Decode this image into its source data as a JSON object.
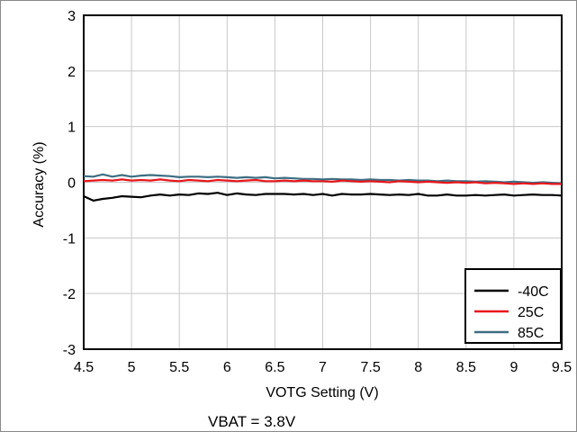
{
  "chart_data": {
    "type": "line",
    "title": "",
    "xlabel": "VOTG Setting (V)",
    "ylabel": "Accuracy (%)",
    "note": "VBAT = 3.8V",
    "xlim": [
      4.5,
      9.5
    ],
    "ylim": [
      -3,
      3
    ],
    "x_ticks": [
      "4.5",
      "5",
      "5.5",
      "6",
      "6.5",
      "7",
      "7.5",
      "8",
      "8.5",
      "9",
      "9.5"
    ],
    "y_ticks": [
      "3",
      "2",
      "1",
      "0",
      "-1",
      "-2",
      "-3"
    ],
    "grid": true,
    "legend_position": "bottom-right",
    "x": [
      4.5,
      4.6,
      4.7,
      4.8,
      4.9,
      5.0,
      5.1,
      5.2,
      5.3,
      5.4,
      5.5,
      5.6,
      5.7,
      5.8,
      5.9,
      6.0,
      6.1,
      6.2,
      6.3,
      6.4,
      6.5,
      6.6,
      6.7,
      6.8,
      6.9,
      7.0,
      7.1,
      7.2,
      7.3,
      7.4,
      7.5,
      7.6,
      7.7,
      7.8,
      7.9,
      8.0,
      8.1,
      8.2,
      8.3,
      8.4,
      8.5,
      8.6,
      8.7,
      8.8,
      8.9,
      9.0,
      9.1,
      9.2,
      9.3,
      9.4,
      9.5
    ],
    "series": [
      {
        "name": "-40C",
        "color": "#000000",
        "values": [
          -0.25,
          -0.33,
          -0.3,
          -0.28,
          -0.25,
          -0.26,
          -0.27,
          -0.24,
          -0.22,
          -0.24,
          -0.22,
          -0.23,
          -0.2,
          -0.21,
          -0.19,
          -0.23,
          -0.2,
          -0.22,
          -0.23,
          -0.21,
          -0.21,
          -0.21,
          -0.22,
          -0.21,
          -0.23,
          -0.21,
          -0.24,
          -0.21,
          -0.22,
          -0.22,
          -0.21,
          -0.22,
          -0.23,
          -0.22,
          -0.23,
          -0.21,
          -0.24,
          -0.24,
          -0.22,
          -0.24,
          -0.24,
          -0.23,
          -0.24,
          -0.23,
          -0.22,
          -0.24,
          -0.23,
          -0.22,
          -0.23,
          -0.23,
          -0.24
        ]
      },
      {
        "name": "25C",
        "color": "#e8161b",
        "values": [
          0.02,
          0.03,
          0.04,
          0.03,
          0.05,
          0.03,
          0.04,
          0.03,
          0.05,
          0.03,
          0.02,
          0.04,
          0.03,
          0.02,
          0.04,
          0.03,
          0.02,
          0.03,
          0.04,
          0.02,
          0.02,
          0.03,
          0.02,
          0.03,
          0.02,
          0.02,
          0.01,
          0.03,
          0.02,
          0.01,
          0.02,
          0.01,
          0.0,
          0.02,
          0.01,
          0.0,
          0.01,
          0.0,
          -0.01,
          0.0,
          -0.01,
          0.0,
          -0.02,
          -0.01,
          -0.02,
          -0.03,
          -0.02,
          -0.03,
          -0.02,
          -0.03,
          -0.03
        ]
      },
      {
        "name": "85C",
        "color": "#3d6e83",
        "values": [
          0.11,
          0.1,
          0.14,
          0.1,
          0.13,
          0.1,
          0.12,
          0.13,
          0.12,
          0.11,
          0.09,
          0.1,
          0.1,
          0.09,
          0.1,
          0.09,
          0.08,
          0.09,
          0.08,
          0.09,
          0.07,
          0.08,
          0.07,
          0.06,
          0.06,
          0.05,
          0.06,
          0.05,
          0.05,
          0.04,
          0.05,
          0.04,
          0.04,
          0.03,
          0.04,
          0.03,
          0.03,
          0.02,
          0.03,
          0.02,
          0.02,
          0.01,
          0.02,
          0.01,
          0.0,
          0.01,
          0.0,
          -0.01,
          0.0,
          -0.01,
          -0.02
        ]
      }
    ]
  }
}
